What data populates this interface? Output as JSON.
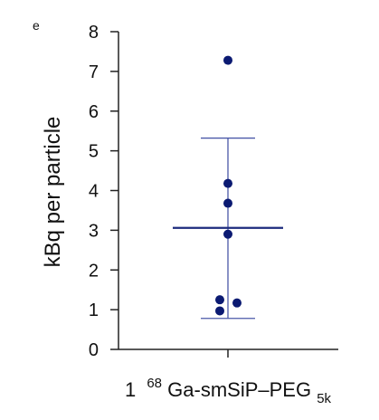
{
  "corner_mark": "e",
  "chart_data": {
    "type": "scatter",
    "ylabel": "kBq per particle",
    "ylim": [
      0,
      8
    ],
    "yticks": [
      "0",
      "1",
      "2",
      "3",
      "4",
      "5",
      "6",
      "7",
      "8"
    ],
    "category": {
      "number": "1",
      "superscript": "68",
      "main": "Ga-smSiP–PEG",
      "subscript": "5k"
    },
    "points": [
      7.28,
      4.18,
      3.68,
      2.9,
      1.25,
      1.17,
      0.97
    ],
    "mean": 3.06,
    "error_upper": 5.32,
    "error_lower": 0.78,
    "grid": false,
    "legend": "none",
    "colors": {
      "points": "#0b1a72",
      "mean_line": "#1d2b7e",
      "error_bars": "#4a58a8",
      "axis": "#222222"
    }
  }
}
